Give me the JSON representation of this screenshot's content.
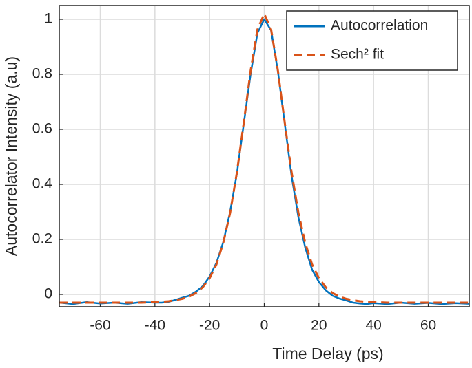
{
  "chart_data": {
    "type": "line",
    "xlabel": "Time Delay (ps)",
    "ylabel": "Autocorrelator Intensity (a.u)",
    "x": [
      -75,
      -70,
      -65,
      -60,
      -55,
      -50,
      -45,
      -40,
      -37.5,
      -35,
      -32.5,
      -30,
      -27.5,
      -25,
      -22.5,
      -20,
      -17.5,
      -15,
      -12.5,
      -10,
      -7.5,
      -5,
      -2.5,
      0,
      2.5,
      5,
      7.5,
      10,
      12.5,
      15,
      17.5,
      20,
      22.5,
      25,
      27.5,
      30,
      32.5,
      35,
      37.5,
      40,
      45,
      50,
      55,
      60,
      65,
      70,
      75
    ],
    "series": [
      {
        "name": "Autocorrelation",
        "color": "#0072bd",
        "dash": false,
        "values": [
          -0.03,
          -0.035,
          -0.028,
          -0.033,
          -0.03,
          -0.034,
          -0.028,
          -0.03,
          -0.03,
          -0.027,
          -0.02,
          -0.012,
          -0.005,
          0.01,
          0.03,
          0.065,
          0.115,
          0.19,
          0.3,
          0.44,
          0.62,
          0.8,
          0.95,
          1.0,
          0.96,
          0.81,
          0.62,
          0.43,
          0.28,
          0.17,
          0.09,
          0.045,
          0.015,
          -0.005,
          -0.015,
          -0.022,
          -0.03,
          -0.033,
          -0.035,
          -0.032,
          -0.035,
          -0.03,
          -0.034,
          -0.031,
          -0.035,
          -0.032,
          -0.034
        ]
      },
      {
        "name": "Sech² fit",
        "color": "#d95319",
        "dash": true,
        "values": [
          -0.03,
          -0.03,
          -0.03,
          -0.03,
          -0.03,
          -0.03,
          -0.03,
          -0.028,
          -0.027,
          -0.025,
          -0.021,
          -0.016,
          -0.008,
          0.005,
          0.026,
          0.059,
          0.109,
          0.187,
          0.296,
          0.444,
          0.624,
          0.813,
          0.963,
          1.02,
          0.963,
          0.813,
          0.624,
          0.444,
          0.296,
          0.187,
          0.109,
          0.059,
          0.026,
          0.005,
          -0.008,
          -0.016,
          -0.021,
          -0.025,
          -0.027,
          -0.028,
          -0.03,
          -0.03,
          -0.03,
          -0.03,
          -0.03,
          -0.03,
          -0.03
        ]
      }
    ],
    "xlim": [
      -75,
      75
    ],
    "ylim": [
      -0.045,
      1.05
    ],
    "xticks": [
      -60,
      -40,
      -20,
      0,
      20,
      40,
      60
    ],
    "yticks": [
      0,
      0.2,
      0.4,
      0.6,
      0.8,
      1
    ],
    "grid": true,
    "legend": "upper right"
  }
}
